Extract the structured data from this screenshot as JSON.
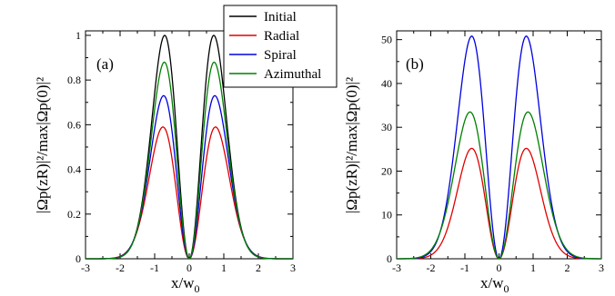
{
  "chart_data": [
    {
      "type": "line",
      "panel_label": "(a)",
      "xlabel_main": "x/w",
      "xlabel_sub": "0",
      "ylabel": "|Ωp(zR)|²/max|Ωp(0)|²",
      "xlim": [
        -3,
        3
      ],
      "ylim": [
        0,
        1.02
      ],
      "xticks": [
        "-3",
        "-2",
        "-1",
        "0",
        "1",
        "2",
        "3"
      ],
      "yticks": [
        "0",
        "0.2",
        "0.4",
        "0.6",
        "0.8",
        "1"
      ],
      "ytick_values": [
        0,
        0.2,
        0.4,
        0.6,
        0.8,
        1
      ],
      "xtick_values": [
        -3,
        -2,
        -1,
        0,
        1,
        2,
        3
      ],
      "legend": [
        "Initial",
        "Radial",
        "Spiral",
        "Azimuthal"
      ],
      "series": [
        {
          "name": "Initial",
          "color": "#000000",
          "peak": 1.0,
          "peak_x": 0.71
        },
        {
          "name": "Radial",
          "color": "#e00000",
          "peak": 0.59,
          "peak_x": 0.76
        },
        {
          "name": "Spiral",
          "color": "#0000e0",
          "peak": 0.73,
          "peak_x": 0.74
        },
        {
          "name": "Azimuthal",
          "color": "#008000",
          "peak": 0.88,
          "peak_x": 0.72
        }
      ]
    },
    {
      "type": "line",
      "panel_label": "(b)",
      "xlabel_main": "x/w",
      "xlabel_sub": "0",
      "ylabel": "|Ωp(zR)|²/max|Ωp(0)|²",
      "xlim": [
        -3,
        3
      ],
      "ylim": [
        0,
        52
      ],
      "xticks": [
        "-3",
        "-2",
        "-1",
        "0",
        "1",
        "2",
        "3"
      ],
      "yticks": [
        "0",
        "10",
        "20",
        "30",
        "40",
        "50"
      ],
      "ytick_values": [
        0,
        10,
        20,
        30,
        40,
        50
      ],
      "xtick_values": [
        -3,
        -2,
        -1,
        0,
        1,
        2,
        3
      ],
      "series": [
        {
          "name": "Radial",
          "color": "#e00000",
          "peak": 25.2,
          "peak_x": 0.8
        },
        {
          "name": "Spiral",
          "color": "#0000e0",
          "peak": 50.8,
          "peak_x": 0.8
        },
        {
          "name": "Azimuthal",
          "color": "#008000",
          "peak": 33.5,
          "peak_x": 0.85
        }
      ]
    }
  ]
}
